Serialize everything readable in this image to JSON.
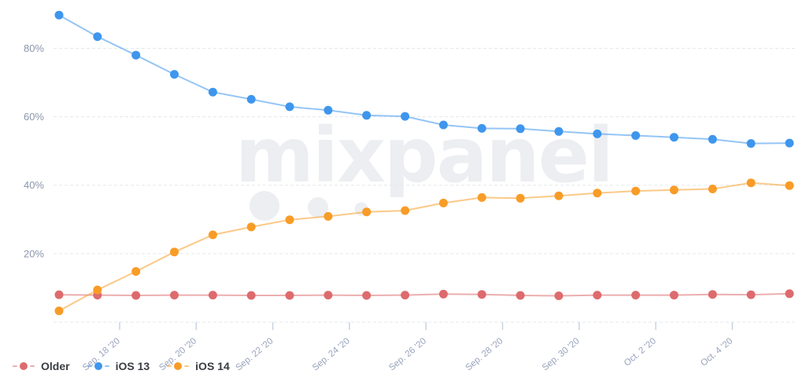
{
  "watermark": {
    "text": "mixpanel"
  },
  "colors": {
    "background": "#ffffff",
    "gridline": "#e4e7ea",
    "axis_tick": "#c9d3e5",
    "y_axis_label": "#8c96aa",
    "x_axis_label": "#98a3bc",
    "legend_text": "#3a3d42",
    "watermark": "#eceef1"
  },
  "chart_data": {
    "type": "line",
    "title": "",
    "xlabel": "",
    "ylabel": "",
    "grid": true,
    "legend_position": "bottom-left",
    "ylim": [
      0,
      92
    ],
    "y_ticks": [
      80,
      60,
      40,
      20
    ],
    "y_tick_suffix": "%",
    "x": [
      "Sep. 16 '20",
      "Sep. 17 '20",
      "Sep. 18 '20",
      "Sep. 19 '20",
      "Sep. 20 '20",
      "Sep. 21 '20",
      "Sep. 22 '20",
      "Sep. 23 '20",
      "Sep. 24 '20",
      "Sep. 25 '20",
      "Sep. 26 '20",
      "Sep. 27 '20",
      "Sep. 28 '20",
      "Sep. 29 '20",
      "Sep. 30 '20",
      "Oct. 1 '20",
      "Oct. 2 '20",
      "Oct. 3 '20",
      "Oct. 4 '20",
      "Oct. 5 '20"
    ],
    "x_tick_labels": [
      "Sep. 18 '20",
      "Sep. 20 '20",
      "Sep. 22 '20",
      "Sep. 24 '20",
      "Sep. 26 '20",
      "Sep. 28 '20",
      "Sep. 30 '20",
      "Oct. 2 '20",
      "Oct. 4 '20"
    ],
    "series": [
      {
        "name": "Older",
        "color": "#dd6b6e",
        "values": [
          8.0,
          7.9,
          7.8,
          7.9,
          7.9,
          7.8,
          7.8,
          7.9,
          7.8,
          7.9,
          8.2,
          8.1,
          7.8,
          7.7,
          7.9,
          7.9,
          7.9,
          8.1,
          8.0,
          8.3
        ]
      },
      {
        "name": "iOS 13",
        "color": "#3e96ed",
        "values": [
          89.7,
          83.4,
          78.0,
          72.4,
          67.2,
          65.1,
          62.9,
          61.9,
          60.4,
          60.1,
          57.6,
          56.6,
          56.5,
          55.7,
          55.0,
          54.5,
          54.0,
          53.4,
          52.2,
          52.3
        ]
      },
      {
        "name": "iOS 14",
        "color": "#f89c27",
        "values": [
          3.3,
          9.4,
          14.8,
          20.5,
          25.5,
          27.8,
          29.9,
          30.9,
          32.2,
          32.6,
          34.8,
          36.4,
          36.2,
          36.9,
          37.7,
          38.3,
          38.6,
          38.9,
          40.7,
          39.9
        ]
      }
    ]
  }
}
